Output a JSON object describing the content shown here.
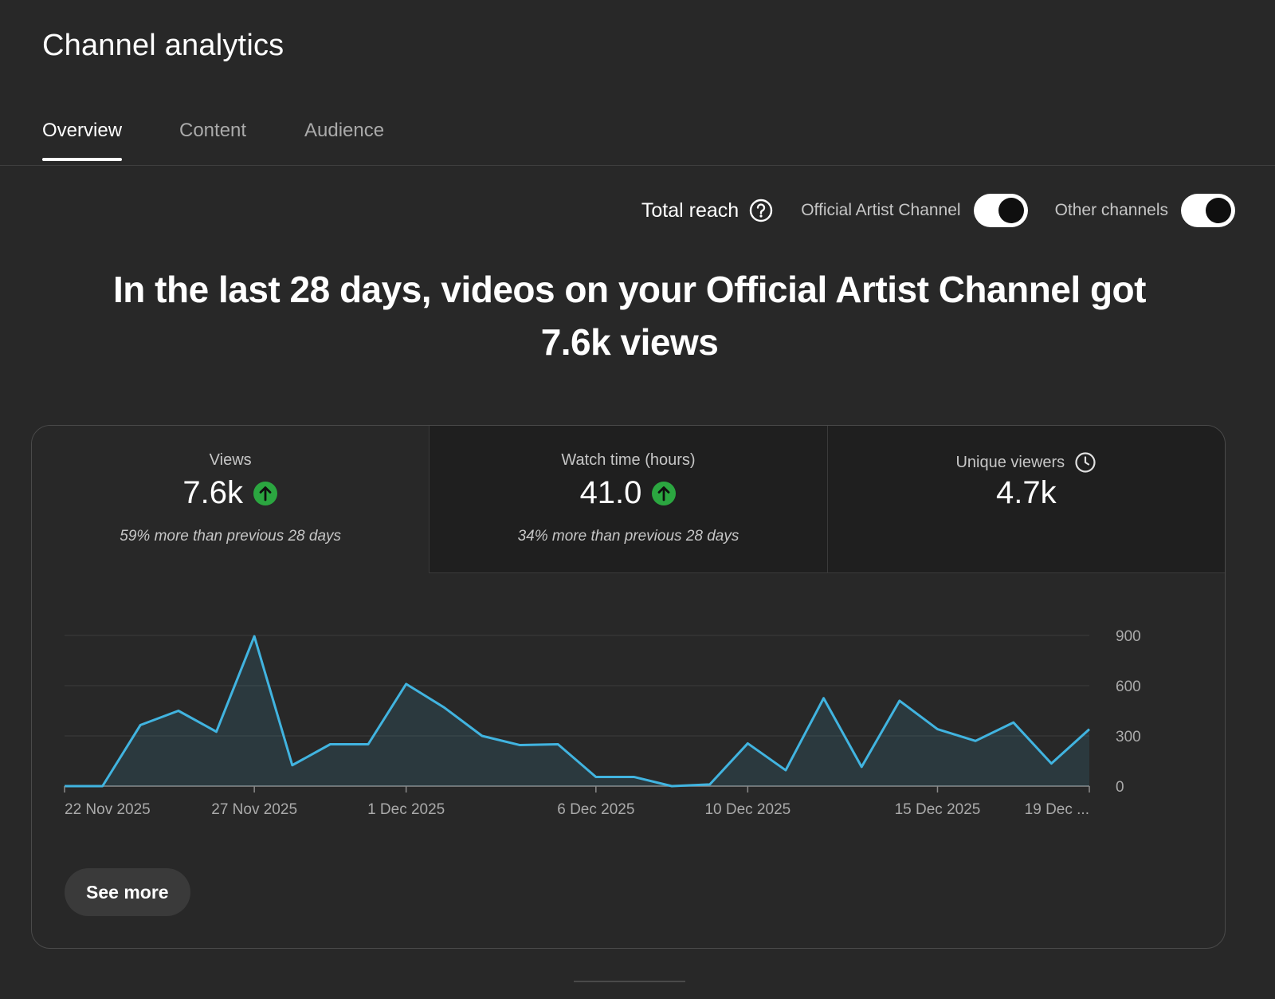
{
  "page": {
    "title": "Channel analytics"
  },
  "tabs": [
    {
      "label": "Overview",
      "active": true
    },
    {
      "label": "Content",
      "active": false
    },
    {
      "label": "Audience",
      "active": false
    }
  ],
  "controls": {
    "total_reach_label": "Total reach",
    "help_icon": "help-circle-icon",
    "toggles": [
      {
        "label": "Official Artist Channel",
        "on": true
      },
      {
        "label": "Other channels",
        "on": true
      }
    ]
  },
  "headline": {
    "line1": "In the last 28 days, videos on your Official Artist Channel got",
    "line2": "7.6k views"
  },
  "metrics": [
    {
      "label": "Views",
      "value": "7.6k",
      "trend": "up",
      "compare": "59% more than previous 28 days",
      "selected": true
    },
    {
      "label": "Watch time (hours)",
      "value": "41.0",
      "trend": "up",
      "compare": "34% more than previous 28 days",
      "selected": false
    },
    {
      "label": "Unique viewers",
      "value": "4.7k",
      "icon": "clock-icon",
      "selected": false
    }
  ],
  "colors": {
    "accent": "#41b4e0",
    "trend_up": "#2ba640",
    "background": "#282828"
  },
  "chart_data": {
    "type": "area",
    "x": [
      "22 Nov 2025",
      "23 Nov 2025",
      "24 Nov 2025",
      "25 Nov 2025",
      "26 Nov 2025",
      "27 Nov 2025",
      "28 Nov 2025",
      "29 Nov 2025",
      "30 Nov 2025",
      "1 Dec 2025",
      "2 Dec 2025",
      "3 Dec 2025",
      "4 Dec 2025",
      "5 Dec 2025",
      "6 Dec 2025",
      "7 Dec 2025",
      "8 Dec 2025",
      "9 Dec 2025",
      "10 Dec 2025",
      "11 Dec 2025",
      "12 Dec 2025",
      "13 Dec 2025",
      "14 Dec 2025",
      "15 Dec 2025",
      "16 Dec 2025",
      "17 Dec 2025",
      "18 Dec 2025",
      "19 Dec 2025"
    ],
    "series": [
      {
        "values": [
          0,
          0,
          365,
          450,
          325,
          895,
          125,
          250,
          250,
          610,
          470,
          300,
          245,
          250,
          55,
          55,
          0,
          10,
          255,
          95,
          525,
          115,
          510,
          340,
          270,
          380,
          135,
          340
        ]
      }
    ],
    "x_tick_labels": [
      "22 Nov 2025",
      "27 Nov 2025",
      "1 Dec 2025",
      "6 Dec 2025",
      "10 Dec 2025",
      "15 Dec 2025",
      "19 Dec ..."
    ],
    "x_tick_index": [
      0,
      5,
      9,
      14,
      18,
      23,
      27
    ],
    "y_ticks": [
      "0",
      "300",
      "600",
      "900"
    ],
    "ylim": [
      0,
      900
    ],
    "grid": true,
    "y_axis_side": "right"
  },
  "see_more_label": "See more"
}
